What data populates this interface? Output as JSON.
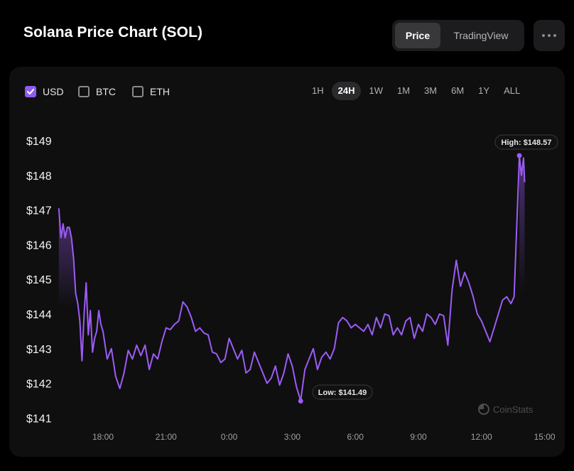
{
  "header": {
    "title": "Solana Price Chart (SOL)",
    "view_toggle": {
      "price_label": "Price",
      "tradingview_label": "TradingView",
      "selected": "Price"
    },
    "more_button_icon": "more-horizontal-icon"
  },
  "currencies": [
    {
      "label": "USD",
      "checked": true
    },
    {
      "label": "BTC",
      "checked": false
    },
    {
      "label": "ETH",
      "checked": false
    }
  ],
  "ranges": [
    "1H",
    "24H",
    "1W",
    "1M",
    "3M",
    "6M",
    "1Y",
    "ALL"
  ],
  "active_range": "24H",
  "watermark": "CoinStats",
  "colors": {
    "accent": "#8f5cf0",
    "line": "#9d5cf5",
    "background": "#000000",
    "card": "#0f0f10"
  },
  "chart_data": {
    "type": "line",
    "title": "",
    "xlabel": "",
    "ylabel": "",
    "y_ticks": [
      "$149",
      "$148",
      "$147",
      "$146",
      "$145",
      "$144",
      "$143",
      "$142",
      "$141"
    ],
    "x_ticks": [
      "18:00",
      "21:00",
      "0:00",
      "3:00",
      "6:00",
      "9:00",
      "12:00",
      "15:00"
    ],
    "ylim": [
      141,
      149
    ],
    "grid": false,
    "high_label": "High: $148.57",
    "low_label": "Low: $141.49",
    "high": {
      "x": 15.1,
      "y": 148.57
    },
    "low": {
      "x": 3.9,
      "y": 141.49
    },
    "series": [
      {
        "values": [
          [
            15.9,
            147.05
          ],
          [
            16.0,
            146.2
          ],
          [
            16.1,
            146.6
          ],
          [
            16.2,
            146.2
          ],
          [
            16.3,
            146.5
          ],
          [
            16.4,
            146.5
          ],
          [
            16.5,
            146.2
          ],
          [
            16.6,
            145.6
          ],
          [
            16.7,
            144.6
          ],
          [
            16.8,
            144.3
          ],
          [
            16.9,
            143.8
          ],
          [
            17.0,
            142.65
          ],
          [
            17.1,
            144.0
          ],
          [
            17.2,
            144.9
          ],
          [
            17.3,
            143.4
          ],
          [
            17.4,
            144.1
          ],
          [
            17.5,
            142.9
          ],
          [
            17.6,
            143.3
          ],
          [
            17.7,
            143.5
          ],
          [
            17.8,
            144.1
          ],
          [
            17.9,
            143.7
          ],
          [
            18.0,
            143.5
          ],
          [
            18.2,
            142.7
          ],
          [
            18.4,
            143.0
          ],
          [
            18.6,
            142.2
          ],
          [
            18.8,
            141.85
          ],
          [
            19.0,
            142.3
          ],
          [
            19.2,
            142.95
          ],
          [
            19.4,
            142.7
          ],
          [
            19.6,
            143.1
          ],
          [
            19.8,
            142.8
          ],
          [
            20.0,
            143.1
          ],
          [
            20.2,
            142.4
          ],
          [
            20.4,
            142.85
          ],
          [
            20.6,
            142.7
          ],
          [
            20.8,
            143.2
          ],
          [
            21.0,
            143.6
          ],
          [
            21.2,
            143.55
          ],
          [
            21.4,
            143.7
          ],
          [
            21.6,
            143.8
          ],
          [
            21.8,
            144.35
          ],
          [
            22.0,
            144.2
          ],
          [
            22.2,
            143.9
          ],
          [
            22.4,
            143.5
          ],
          [
            22.6,
            143.6
          ],
          [
            22.8,
            143.45
          ],
          [
            23.0,
            143.4
          ],
          [
            23.2,
            142.9
          ],
          [
            23.4,
            142.85
          ],
          [
            23.6,
            142.6
          ],
          [
            23.8,
            142.7
          ],
          [
            24.0,
            143.3
          ],
          [
            24.2,
            143.0
          ],
          [
            24.4,
            142.7
          ],
          [
            24.6,
            142.95
          ],
          [
            24.8,
            142.3
          ],
          [
            25.0,
            142.4
          ],
          [
            25.2,
            142.9
          ],
          [
            25.4,
            142.6
          ],
          [
            25.6,
            142.3
          ],
          [
            25.8,
            142.0
          ],
          [
            26.0,
            142.15
          ],
          [
            26.2,
            142.5
          ],
          [
            26.4,
            141.95
          ],
          [
            26.6,
            142.3
          ],
          [
            26.8,
            142.85
          ],
          [
            27.0,
            142.5
          ],
          [
            27.2,
            141.9
          ],
          [
            27.4,
            141.5
          ],
          [
            27.6,
            142.4
          ],
          [
            27.8,
            142.7
          ],
          [
            28.0,
            143.0
          ],
          [
            28.2,
            142.4
          ],
          [
            28.4,
            142.75
          ],
          [
            28.6,
            142.9
          ],
          [
            28.8,
            142.7
          ],
          [
            29.0,
            143.0
          ],
          [
            29.2,
            143.75
          ],
          [
            29.4,
            143.9
          ],
          [
            29.6,
            143.8
          ],
          [
            29.8,
            143.6
          ],
          [
            30.0,
            143.7
          ],
          [
            30.2,
            143.6
          ],
          [
            30.4,
            143.5
          ],
          [
            30.6,
            143.7
          ],
          [
            30.8,
            143.4
          ],
          [
            31.0,
            143.9
          ],
          [
            31.2,
            143.6
          ],
          [
            31.4,
            144.0
          ],
          [
            31.6,
            143.95
          ],
          [
            31.8,
            143.4
          ],
          [
            32.0,
            143.6
          ],
          [
            32.2,
            143.4
          ],
          [
            32.4,
            143.8
          ],
          [
            32.6,
            143.9
          ],
          [
            32.8,
            143.3
          ],
          [
            33.0,
            143.7
          ],
          [
            33.2,
            143.5
          ],
          [
            33.4,
            144.0
          ],
          [
            33.6,
            143.9
          ],
          [
            33.8,
            143.7
          ],
          [
            34.0,
            144.0
          ],
          [
            34.2,
            143.95
          ],
          [
            34.4,
            143.1
          ],
          [
            34.6,
            144.7
          ],
          [
            34.8,
            145.55
          ],
          [
            35.0,
            144.8
          ],
          [
            35.2,
            145.2
          ],
          [
            35.4,
            144.9
          ],
          [
            35.6,
            144.5
          ],
          [
            35.8,
            144.0
          ],
          [
            36.0,
            143.8
          ],
          [
            36.2,
            143.5
          ],
          [
            36.4,
            143.2
          ],
          [
            36.6,
            143.6
          ],
          [
            36.8,
            144.0
          ],
          [
            37.0,
            144.4
          ],
          [
            37.2,
            144.5
          ],
          [
            37.4,
            144.3
          ],
          [
            37.55,
            144.5
          ],
          [
            37.8,
            148.57
          ],
          [
            37.9,
            148.0
          ],
          [
            38.0,
            148.5
          ],
          [
            38.05,
            147.8
          ]
        ]
      }
    ]
  }
}
